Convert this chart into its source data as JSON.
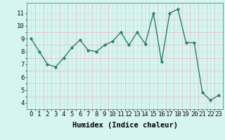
{
  "x": [
    0,
    1,
    2,
    3,
    4,
    5,
    6,
    7,
    8,
    9,
    10,
    11,
    12,
    13,
    14,
    15,
    16,
    17,
    18,
    19,
    20,
    21,
    22,
    23
  ],
  "y": [
    9.0,
    8.0,
    7.0,
    6.8,
    7.5,
    8.3,
    8.9,
    8.1,
    8.0,
    8.5,
    8.8,
    9.5,
    8.5,
    9.5,
    8.6,
    11.0,
    7.2,
    11.0,
    11.3,
    8.7,
    8.7,
    4.8,
    4.2,
    4.6
  ],
  "line_color": "#2e7d6e",
  "marker_color": "#2e7d6e",
  "bg_color": "#d6f5f0",
  "grid_major_color": "#c8e8e0",
  "grid_minor_color": "#e0c8c8",
  "xlabel": "Humidex (Indice chaleur)",
  "ylim": [
    3.5,
    11.8
  ],
  "xlim": [
    -0.5,
    23.5
  ],
  "yticks": [
    4,
    5,
    6,
    7,
    8,
    9,
    10,
    11
  ],
  "xticks": [
    0,
    1,
    2,
    3,
    4,
    5,
    6,
    7,
    8,
    9,
    10,
    11,
    12,
    13,
    14,
    15,
    16,
    17,
    18,
    19,
    20,
    21,
    22,
    23
  ],
  "tick_fontsize": 6.5,
  "xlabel_fontsize": 7.5,
  "linewidth": 1.0,
  "markersize": 2.5
}
